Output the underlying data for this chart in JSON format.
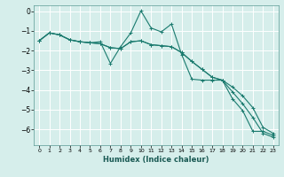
{
  "xlabel": "Humidex (Indice chaleur)",
  "ylabel": "",
  "background_color": "#d6eeeb",
  "grid_color": "#ffffff",
  "line_color": "#1a7a6e",
  "xlim": [
    -0.5,
    23.5
  ],
  "ylim": [
    -6.8,
    0.3
  ],
  "yticks": [
    0,
    -1,
    -2,
    -3,
    -4,
    -5,
    -6
  ],
  "xticks": [
    0,
    1,
    2,
    3,
    4,
    5,
    6,
    7,
    8,
    9,
    10,
    11,
    12,
    13,
    14,
    15,
    16,
    17,
    18,
    19,
    20,
    21,
    22,
    23
  ],
  "line1_x": [
    0,
    1,
    2,
    3,
    4,
    5,
    6,
    7,
    8,
    9,
    10,
    11,
    12,
    13,
    14,
    15,
    16,
    17,
    18,
    19,
    20,
    21,
    22,
    23
  ],
  "line1_y": [
    -1.5,
    -1.1,
    -1.2,
    -1.45,
    -1.55,
    -1.6,
    -1.55,
    -2.65,
    -1.8,
    -1.1,
    0.02,
    -0.85,
    -1.05,
    -0.65,
    -2.2,
    -3.45,
    -3.5,
    -3.5,
    -3.5,
    -4.45,
    -5.05,
    -6.1,
    -6.1,
    -6.3
  ],
  "line2_x": [
    0,
    1,
    2,
    3,
    4,
    5,
    6,
    7,
    8,
    9,
    10,
    11,
    12,
    13,
    14,
    15,
    16,
    17,
    18,
    19,
    20,
    21,
    22,
    23
  ],
  "line2_y": [
    -1.5,
    -1.1,
    -1.2,
    -1.45,
    -1.55,
    -1.6,
    -1.65,
    -1.85,
    -1.9,
    -1.55,
    -1.5,
    -1.7,
    -1.75,
    -1.8,
    -2.1,
    -2.55,
    -2.95,
    -3.35,
    -3.5,
    -3.85,
    -4.3,
    -4.9,
    -5.9,
    -6.2
  ],
  "line3_x": [
    0,
    1,
    2,
    3,
    4,
    5,
    6,
    7,
    8,
    9,
    10,
    11,
    12,
    13,
    14,
    15,
    16,
    17,
    18,
    19,
    20,
    21,
    22,
    23
  ],
  "line3_y": [
    -1.5,
    -1.1,
    -1.2,
    -1.45,
    -1.55,
    -1.6,
    -1.65,
    -1.85,
    -1.9,
    -1.55,
    -1.5,
    -1.7,
    -1.75,
    -1.8,
    -2.1,
    -2.55,
    -2.95,
    -3.35,
    -3.5,
    -4.1,
    -4.7,
    -5.4,
    -6.2,
    -6.4
  ]
}
